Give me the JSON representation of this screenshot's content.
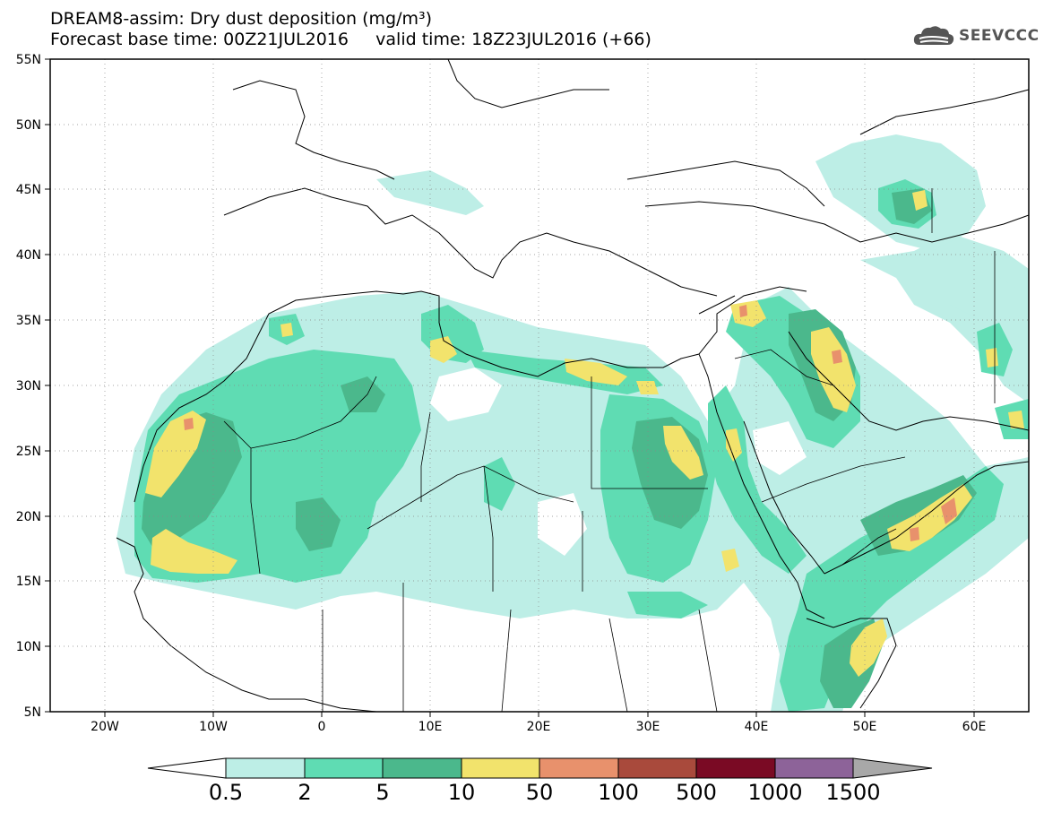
{
  "header": {
    "title": "DREAM8-assim: Dry dust deposition (mg/m³)",
    "line2_base": "Forecast base time: 00Z21JUL2016",
    "line2_valid": "valid time: 18Z23JUL2016 (+66)"
  },
  "logo": {
    "text": "SEEVCCC",
    "icon": "cloud-icon"
  },
  "map": {
    "region": "North Africa, Europe and Middle East",
    "lon_range": [
      -25,
      65
    ],
    "lat_range": [
      5,
      55
    ],
    "lon_ticks": [
      "20W",
      "10W",
      "0",
      "10E",
      "20E",
      "30E",
      "40E",
      "50E",
      "60E"
    ],
    "lat_ticks": [
      "55N",
      "50N",
      "45N",
      "40N",
      "35N",
      "30N",
      "25N",
      "20N",
      "15N",
      "10N",
      "5N"
    ],
    "grid": "dotted"
  },
  "colorbar": {
    "levels": [
      "0.5",
      "2",
      "5",
      "10",
      "50",
      "100",
      "500",
      "1000",
      "1500"
    ],
    "colors": [
      "#bdeee6",
      "#5fdcb3",
      "#4bb88c",
      "#f2e36c",
      "#e8916c",
      "#a94a3c",
      "#7a0a24",
      "#8d6399",
      "#a8a8a8"
    ],
    "under_color": "#ffffff"
  }
}
